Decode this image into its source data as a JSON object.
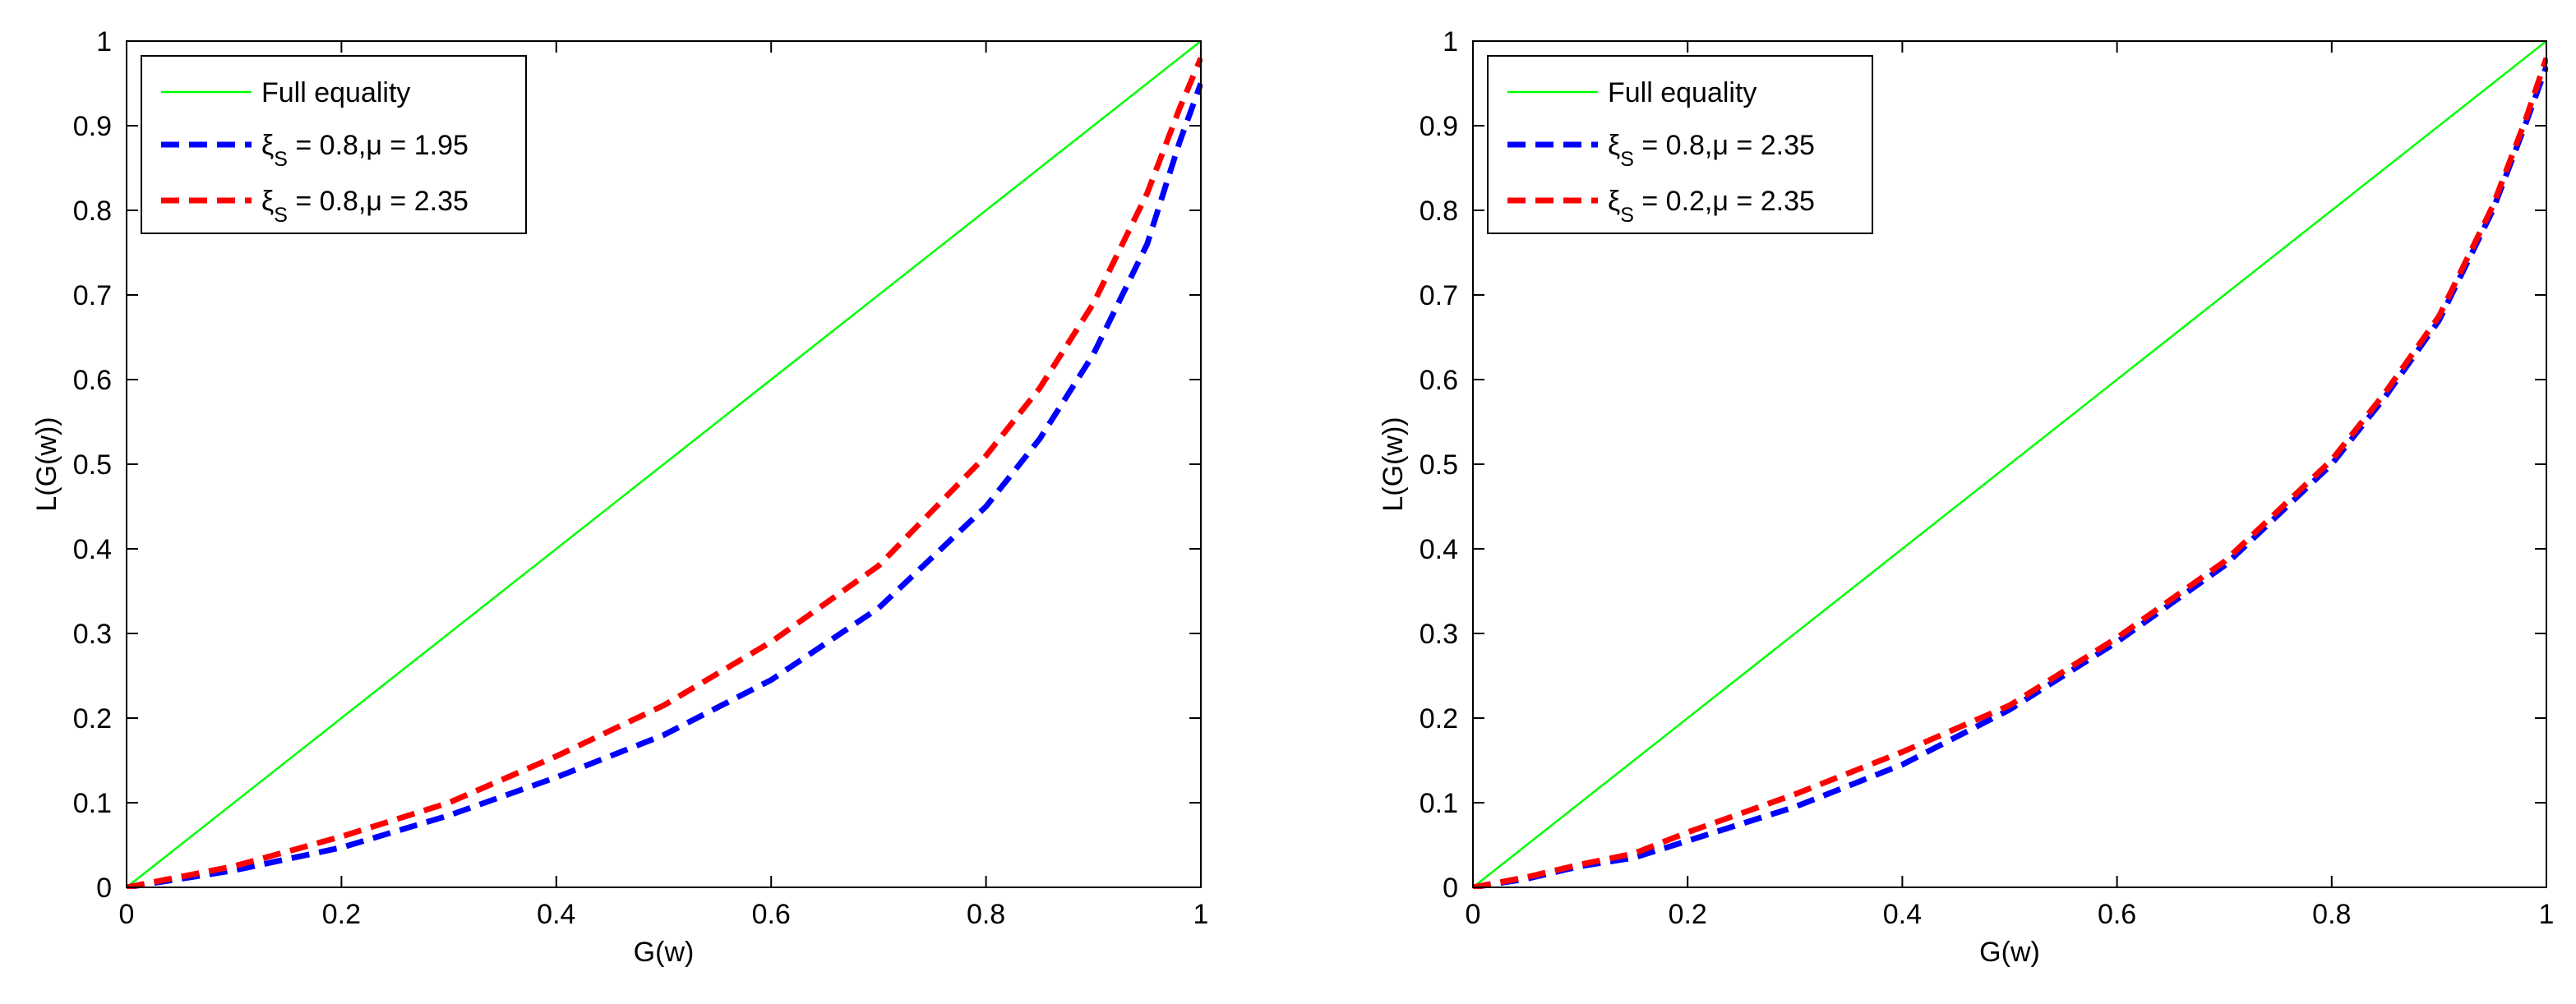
{
  "chart_data": [
    {
      "type": "line",
      "title": "",
      "xlabel": "G(w)",
      "ylabel": "L(G(w))",
      "xlim": [
        0,
        1
      ],
      "ylim": [
        0,
        1
      ],
      "xticks": [
        "0",
        "0.2",
        "0.4",
        "0.6",
        "0.8",
        "1"
      ],
      "yticks": [
        "0",
        "0.1",
        "0.2",
        "0.3",
        "0.4",
        "0.5",
        "0.6",
        "0.7",
        "0.8",
        "0.9",
        "1"
      ],
      "legend_position": "top-left",
      "grid": false,
      "series": [
        {
          "name": "Full equality",
          "legend": {
            "main": "Full equality"
          },
          "color": "#00ff00",
          "style": "solid",
          "x": [
            0,
            1
          ],
          "y": [
            0,
            1
          ]
        },
        {
          "name": "ξS = 0.8,μ = 1.95",
          "legend": {
            "pre": "ξ",
            "sub": "S",
            "post": " = 0.8,μ = 1.95"
          },
          "color": "#0000ff",
          "style": "dashed",
          "x": [
            0,
            0.1,
            0.2,
            0.3,
            0.4,
            0.5,
            0.6,
            0.7,
            0.8,
            0.85,
            0.9,
            0.95,
            0.98,
            1.0
          ],
          "y": [
            0,
            0.02,
            0.047,
            0.085,
            0.13,
            0.18,
            0.245,
            0.33,
            0.45,
            0.53,
            0.63,
            0.76,
            0.88,
            0.95
          ]
        },
        {
          "name": "ξS = 0.8,μ = 2.35",
          "legend": {
            "pre": "ξ",
            "sub": "S",
            "post": " = 0.8,μ = 2.35"
          },
          "color": "#ff0000",
          "style": "dashed",
          "x": [
            0,
            0.1,
            0.2,
            0.3,
            0.4,
            0.5,
            0.6,
            0.7,
            0.8,
            0.85,
            0.9,
            0.95,
            0.98,
            1.0
          ],
          "y": [
            0,
            0.025,
            0.06,
            0.1,
            0.155,
            0.215,
            0.29,
            0.38,
            0.51,
            0.59,
            0.69,
            0.82,
            0.92,
            0.98
          ]
        }
      ]
    },
    {
      "type": "line",
      "title": "",
      "xlabel": "G(w)",
      "ylabel": "L(G(w))",
      "xlim": [
        0,
        1
      ],
      "ylim": [
        0,
        1
      ],
      "xticks": [
        "0",
        "0.2",
        "0.4",
        "0.6",
        "0.8",
        "1"
      ],
      "yticks": [
        "0",
        "0.1",
        "0.2",
        "0.3",
        "0.4",
        "0.5",
        "0.6",
        "0.7",
        "0.8",
        "0.9",
        "1"
      ],
      "legend_position": "top-left",
      "grid": false,
      "series": [
        {
          "name": "Full equality",
          "legend": {
            "main": "Full equality"
          },
          "color": "#00ff00",
          "style": "solid",
          "x": [
            0,
            1
          ],
          "y": [
            0,
            1
          ]
        },
        {
          "name": "ξS = 0.8,μ = 2.35",
          "legend": {
            "pre": "ξ",
            "sub": "S",
            "post": " = 0.8,μ = 2.35"
          },
          "color": "#0000ff",
          "style": "dashed",
          "x": [
            0,
            0.05,
            0.1,
            0.15,
            0.2,
            0.3,
            0.4,
            0.5,
            0.6,
            0.7,
            0.8,
            0.85,
            0.9,
            0.95,
            0.98,
            1.0
          ],
          "y": [
            0,
            0.01,
            0.025,
            0.035,
            0.055,
            0.095,
            0.145,
            0.21,
            0.29,
            0.38,
            0.5,
            0.58,
            0.67,
            0.8,
            0.9,
            0.97
          ]
        },
        {
          "name": "ξS = 0.2,μ = 2.35",
          "legend": {
            "pre": "ξ",
            "sub": "S",
            "post": " = 0.2,μ = 2.35"
          },
          "color": "#ff0000",
          "style": "dashed",
          "x": [
            0,
            0.05,
            0.1,
            0.15,
            0.2,
            0.3,
            0.4,
            0.5,
            0.6,
            0.7,
            0.8,
            0.85,
            0.9,
            0.95,
            0.98,
            1.0
          ],
          "y": [
            0,
            0.012,
            0.027,
            0.04,
            0.065,
            0.11,
            0.16,
            0.215,
            0.295,
            0.385,
            0.505,
            0.585,
            0.675,
            0.805,
            0.905,
            0.98
          ]
        }
      ]
    }
  ]
}
